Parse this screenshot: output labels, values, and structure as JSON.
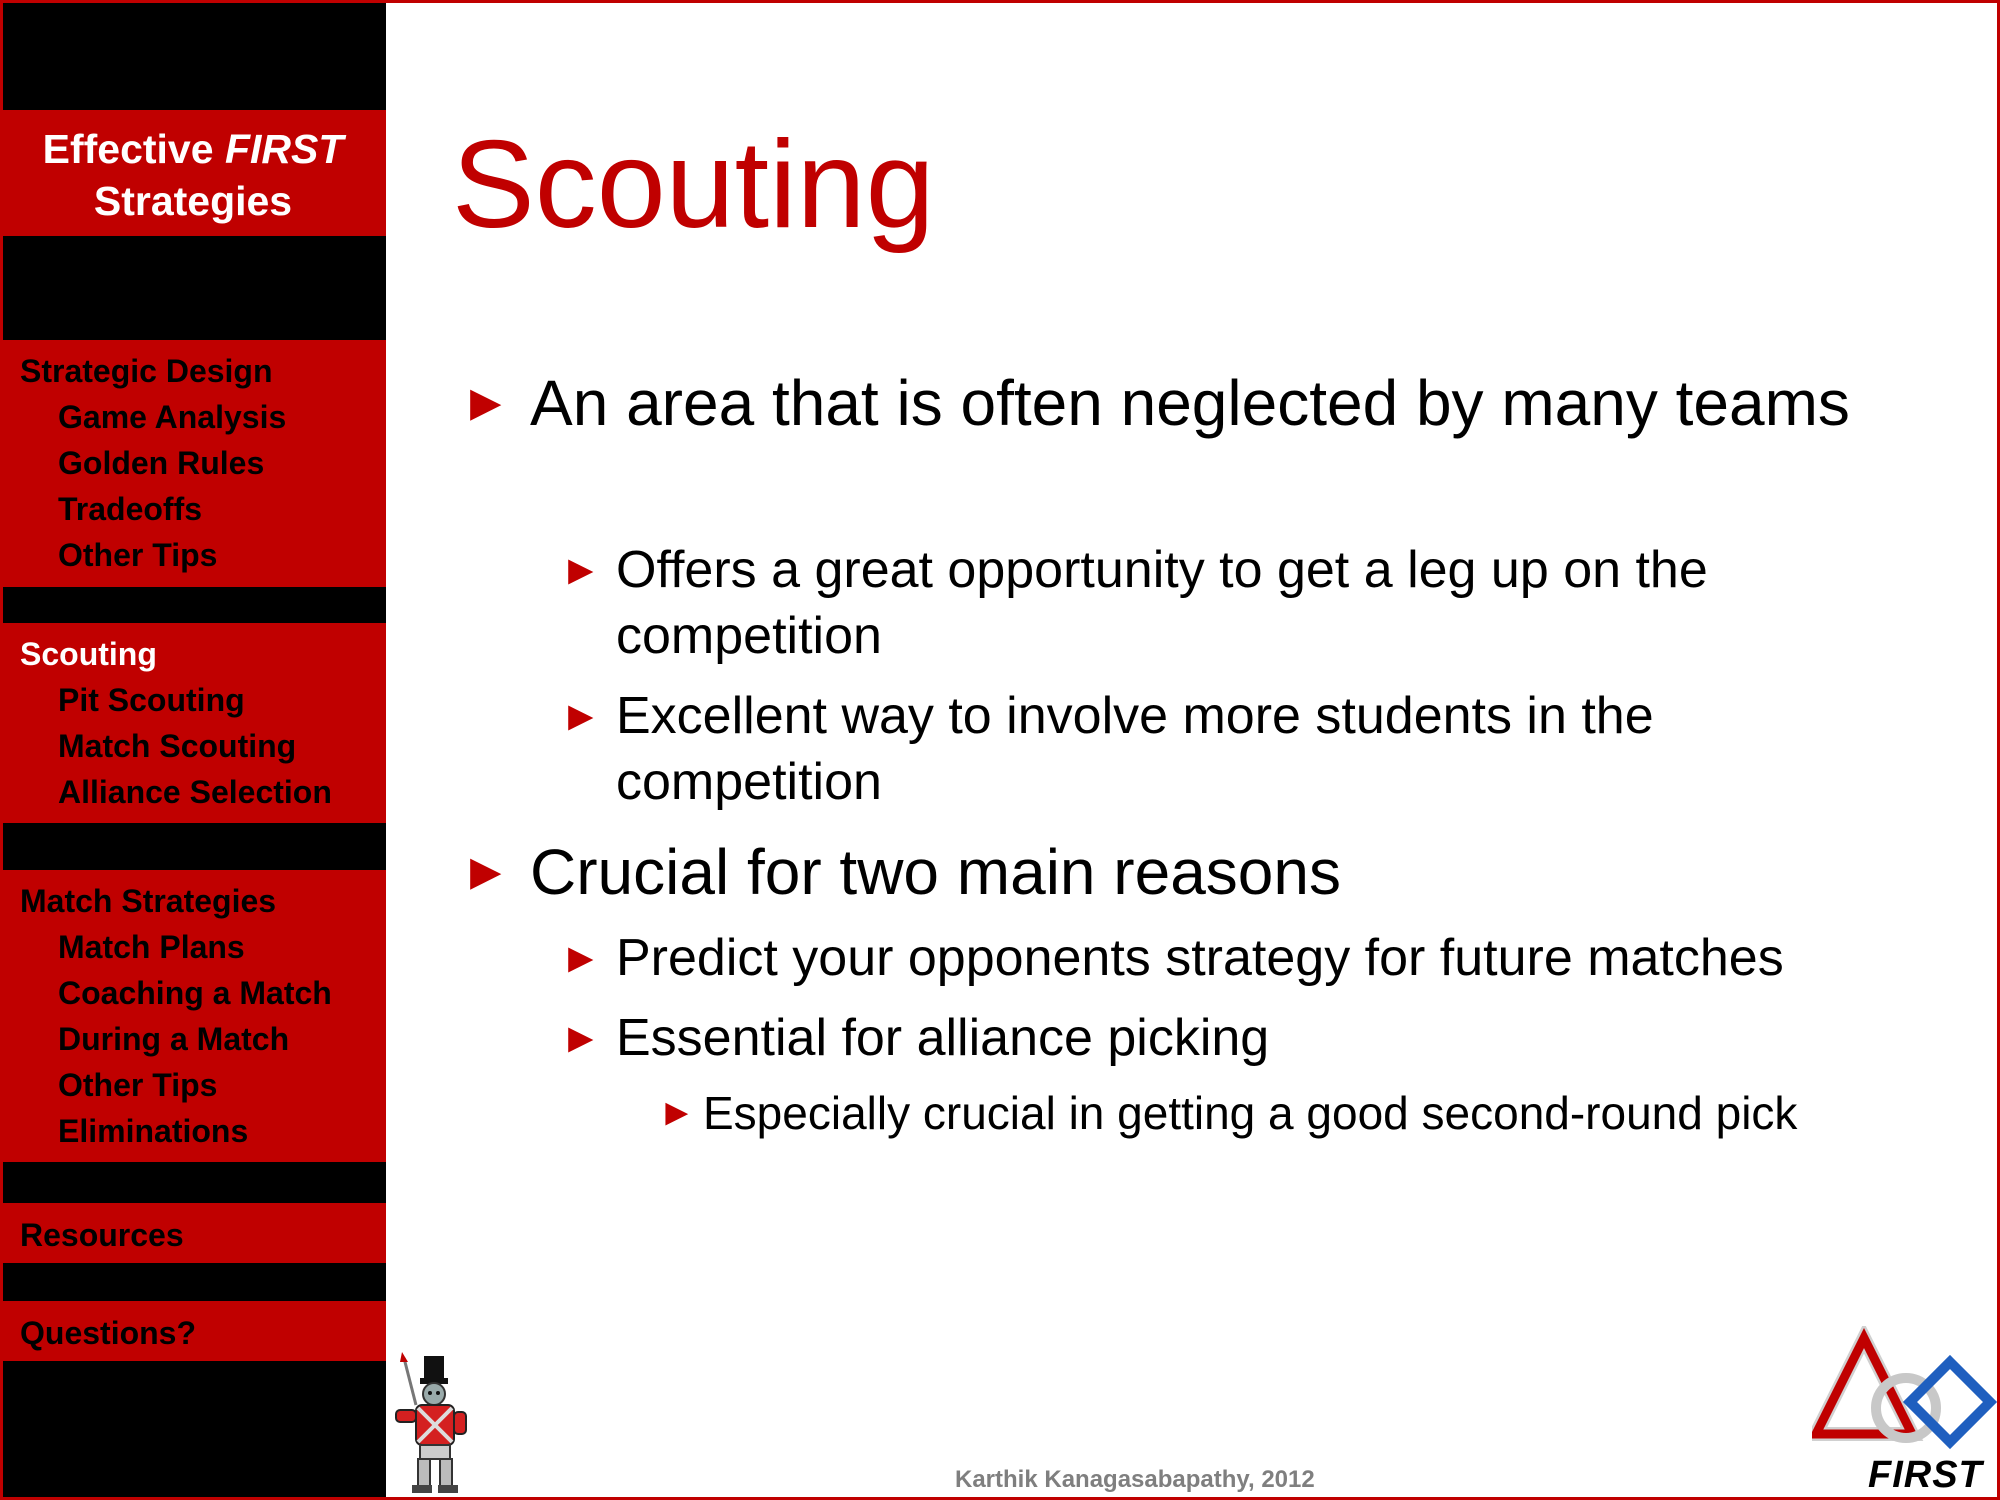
{
  "sidebar": {
    "title_prefix": "Effective ",
    "title_emph": "FIRST",
    "title_suffix": "Strategies",
    "sections": {
      "strategic": {
        "head": "Strategic Design",
        "items": [
          "Game Analysis",
          "Golden Rules",
          "Tradeoffs",
          "Other Tips"
        ]
      },
      "scouting": {
        "head": "Scouting",
        "items": [
          "Pit Scouting",
          "Match Scouting",
          "Alliance Selection"
        ]
      },
      "match": {
        "head": "Match Strategies",
        "items": [
          "Match Plans",
          "Coaching a Match",
          "During a Match",
          "Other Tips",
          "Eliminations"
        ]
      },
      "resources": {
        "head": "Resources"
      },
      "questions": {
        "head": "Questions?"
      }
    }
  },
  "slide": {
    "title": "Scouting",
    "bullet_glyph": "►",
    "bullets": {
      "b1": "An area that is often neglected by many teams",
      "b1a": "Offers a great opportunity to get a leg up on the competition",
      "b1b": "Excellent way to involve more students in the competition",
      "b2": "Crucial for two main reasons",
      "b2a": "Predict your opponents strategy for future matches",
      "b2b": "Essential for alliance picking",
      "b2b1": "Especially crucial in getting a good second-round pick"
    }
  },
  "footer": {
    "author": "Karthik Kanagasabapathy, 2012"
  },
  "logo": {
    "text": "FIRST"
  },
  "colors": {
    "accent": "#c00000",
    "sidebar_bg": "#000000",
    "footer_text": "#7f7f7f"
  }
}
